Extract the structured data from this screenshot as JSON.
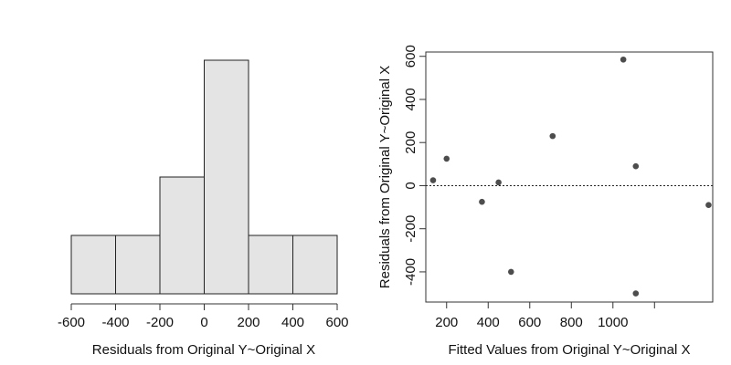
{
  "chart_data": [
    {
      "type": "bar",
      "subtype": "histogram",
      "xlabel": "Residuals from Original Y~Original X",
      "ylabel": "",
      "bins": [
        {
          "from": -600,
          "to": -400,
          "count": 1
        },
        {
          "from": -400,
          "to": -200,
          "count": 1
        },
        {
          "from": -200,
          "to": 0,
          "count": 2
        },
        {
          "from": 0,
          "to": 200,
          "count": 4
        },
        {
          "from": 200,
          "to": 400,
          "count": 1
        },
        {
          "from": 400,
          "to": 600,
          "count": 1
        }
      ],
      "xlim": [
        -600,
        600
      ],
      "x_ticks": [
        "-600",
        "-400",
        "-200",
        "0",
        "200",
        "400",
        "600"
      ],
      "bar_fill": "#e4e4e4",
      "bar_stroke": "#222222"
    },
    {
      "type": "scatter",
      "xlabel": "Fitted Values from Original Y~Original X",
      "ylabel": "Residuals from Original Y~Original X",
      "points": [
        {
          "x": 135,
          "y": 25
        },
        {
          "x": 200,
          "y": 125
        },
        {
          "x": 370,
          "y": -75
        },
        {
          "x": 450,
          "y": 15
        },
        {
          "x": 510,
          "y": -400
        },
        {
          "x": 710,
          "y": 230
        },
        {
          "x": 1050,
          "y": 585
        },
        {
          "x": 1110,
          "y": 90
        },
        {
          "x": 1110,
          "y": -500
        },
        {
          "x": 1460,
          "y": -90
        }
      ],
      "xlim": [
        100,
        1480
      ],
      "ylim": [
        -540,
        620
      ],
      "x_ticks": [
        "200",
        "400",
        "600",
        "800",
        "1000",
        ""
      ],
      "y_ticks": [
        "-400",
        "-200",
        "0",
        "200",
        "400",
        "600"
      ],
      "reference_line_y": 0,
      "point_color": "#4d4d4d",
      "box": true
    }
  ]
}
